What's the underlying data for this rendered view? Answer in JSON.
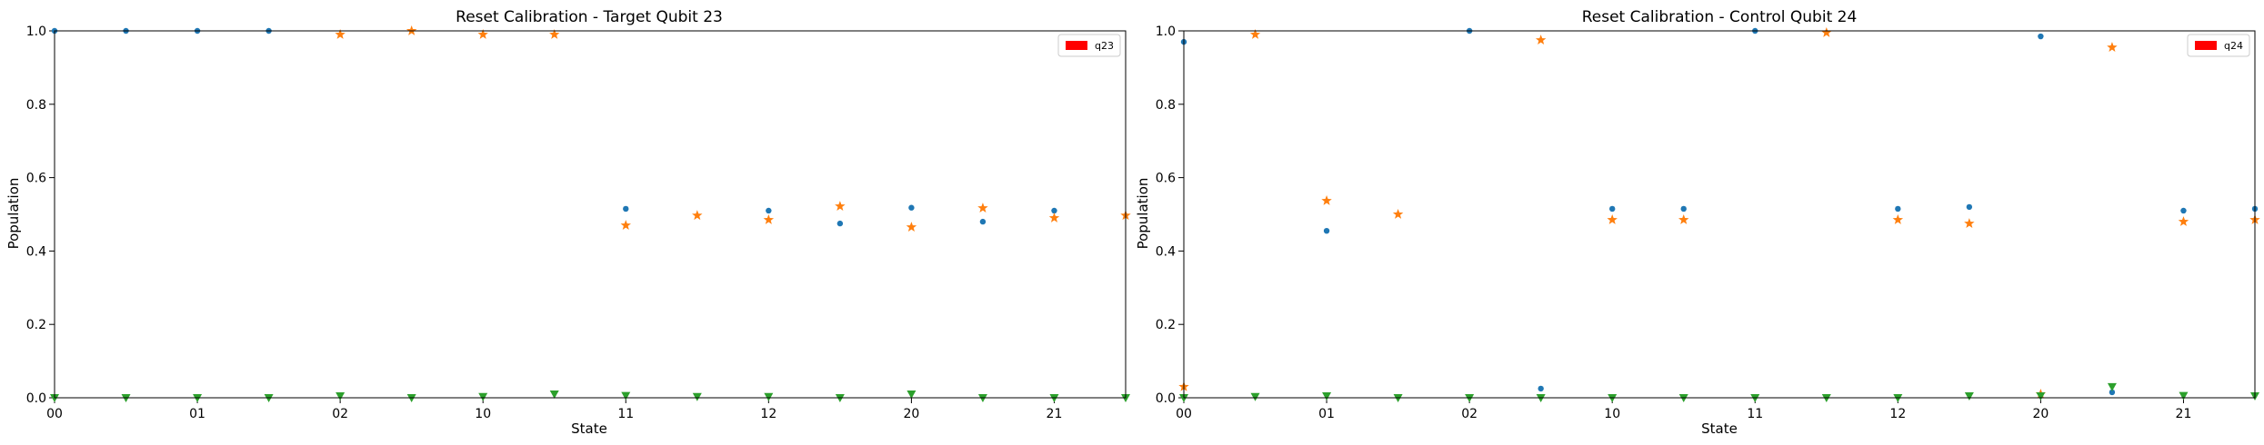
{
  "chart_data": [
    {
      "type": "scatter",
      "title": "Reset Calibration - Target Qubit 23",
      "xlabel": "State",
      "ylabel": "Population",
      "ylim": [
        0,
        1
      ],
      "x": [
        0,
        0.5,
        1,
        1.5,
        2,
        2.5,
        3,
        3.5,
        4,
        4.5,
        5,
        5.5,
        6,
        6.5,
        7,
        7.5
      ],
      "xlim": [
        0,
        7.5
      ],
      "xticks": [
        0,
        1,
        2,
        3,
        4,
        5,
        6,
        7
      ],
      "xtick_labels": [
        "00",
        "01",
        "02",
        "10",
        "11",
        "12",
        "20",
        "21"
      ],
      "yticks": [
        0.0,
        0.2,
        0.4,
        0.6,
        0.8,
        1.0
      ],
      "ytick_labels": [
        "0.0",
        "0.2",
        "0.4",
        "0.6",
        "0.8",
        "1.0"
      ],
      "grid": false,
      "legend_position": "top-right",
      "legend": [
        {
          "label": "q23",
          "color": "#ff0000"
        }
      ],
      "series": [
        {
          "marker": "dot",
          "color": "#1f77b4",
          "values": [
            1.0,
            1.0,
            1.0,
            1.0,
            null,
            null,
            null,
            null,
            0.515,
            null,
            0.51,
            0.475,
            0.518,
            0.48,
            0.51,
            null
          ]
        },
        {
          "marker": "star",
          "color": "#ff7f0e",
          "values": [
            null,
            null,
            null,
            null,
            0.99,
            1.0,
            0.99,
            0.99,
            0.47,
            0.497,
            0.485,
            0.522,
            0.465,
            0.517,
            0.49,
            0.497
          ]
        },
        {
          "marker": "triangle-down",
          "color": "#2ca02c",
          "values": [
            0.0,
            0.0,
            0.0,
            0.0,
            0.005,
            0.0,
            0.003,
            0.01,
            0.006,
            0.003,
            0.003,
            0.0,
            0.01,
            0.0,
            0.0,
            0.0
          ]
        }
      ]
    },
    {
      "type": "scatter",
      "title": "Reset Calibration - Control Qubit 24",
      "xlabel": "State",
      "ylabel": "Population",
      "ylim": [
        0,
        1
      ],
      "x": [
        0,
        0.5,
        1,
        1.5,
        2,
        2.5,
        3,
        3.5,
        4,
        4.5,
        5,
        5.5,
        6,
        6.5,
        7,
        7.5
      ],
      "xlim": [
        0,
        7.5
      ],
      "xticks": [
        0,
        1,
        2,
        3,
        4,
        5,
        6,
        7
      ],
      "xtick_labels": [
        "00",
        "01",
        "02",
        "10",
        "11",
        "12",
        "20",
        "21"
      ],
      "yticks": [
        0.0,
        0.2,
        0.4,
        0.6,
        0.8,
        1.0
      ],
      "ytick_labels": [
        "0.0",
        "0.2",
        "0.4",
        "0.6",
        "0.8",
        "1.0"
      ],
      "grid": false,
      "legend_position": "top-right",
      "legend": [
        {
          "label": "q24",
          "color": "#ff0000"
        }
      ],
      "series": [
        {
          "marker": "dot",
          "color": "#1f77b4",
          "values": [
            0.97,
            null,
            0.455,
            null,
            1.0,
            0.025,
            0.515,
            0.515,
            1.0,
            null,
            0.515,
            0.52,
            0.985,
            0.015,
            0.51,
            0.515
          ]
        },
        {
          "marker": "star",
          "color": "#ff7f0e",
          "values": [
            0.03,
            0.99,
            0.537,
            0.5,
            null,
            0.975,
            0.485,
            0.485,
            null,
            0.995,
            0.485,
            0.475,
            0.01,
            0.955,
            0.48,
            0.485
          ]
        },
        {
          "marker": "triangle-down",
          "color": "#2ca02c",
          "values": [
            0.0,
            0.003,
            0.005,
            0.0,
            0.0,
            0.0,
            0.0,
            0.0,
            0.0,
            0.0,
            0.0,
            0.005,
            0.005,
            0.03,
            0.006,
            0.005
          ]
        }
      ]
    }
  ]
}
